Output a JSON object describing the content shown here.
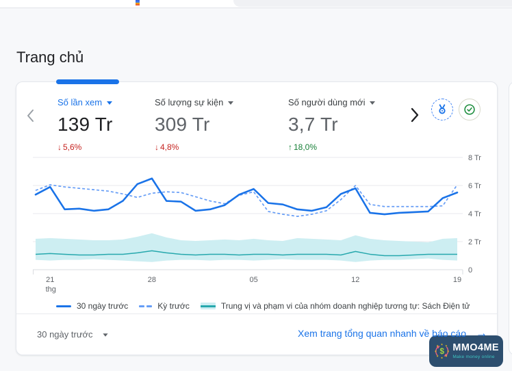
{
  "page": {
    "title": "Trang chủ"
  },
  "card": {
    "metrics": [
      {
        "label": "Số lần xem",
        "value": "139 Tr",
        "arrow": "↓",
        "delta": "5,6%",
        "direction": "down",
        "selected": true
      },
      {
        "label": "Số lượng sự kiện",
        "value": "309 Tr",
        "arrow": "↓",
        "delta": "4,8%",
        "direction": "down",
        "selected": false
      },
      {
        "label": "Số người dùng mới",
        "value": "3,7 Tr",
        "arrow": "↑",
        "delta": "18,0%",
        "direction": "up",
        "selected": false
      }
    ],
    "legend": [
      "30 ngày trước",
      "Kỳ trước",
      "Trung vị và phạm vi của nhóm doanh nghiệp tương tự: Sách Điện tử"
    ],
    "footer": {
      "range_label": "30 ngày trước",
      "link_label": "Xem trang tổng quan nhanh về báo cáo",
      "link_arrow": "→"
    }
  },
  "chart_data": {
    "type": "line",
    "unit": "Tr",
    "ylim": [
      0,
      8
    ],
    "grid": true,
    "legend_position": "bottom",
    "x_ticks": [
      {
        "i": 1,
        "label": "21",
        "sub": "thg"
      },
      {
        "i": 8,
        "label": "28"
      },
      {
        "i": 15,
        "label": "05"
      },
      {
        "i": 22,
        "label": "12"
      },
      {
        "i": 29,
        "label": "19"
      }
    ],
    "y_ticks": [
      {
        "v": 8,
        "label": "8 Tr"
      },
      {
        "v": 6,
        "label": "6 Tr"
      },
      {
        "v": 4,
        "label": "4 Tr"
      },
      {
        "v": 2,
        "label": "2 Tr"
      },
      {
        "v": 0,
        "label": "0"
      }
    ],
    "series": [
      {
        "name": "30 ngày trước",
        "style": "solid",
        "values": [
          5.35,
          5.9,
          4.3,
          4.35,
          4.2,
          4.3,
          4.9,
          6.1,
          6.5,
          4.9,
          4.85,
          4.2,
          4.3,
          4.6,
          5.35,
          5.75,
          4.75,
          4.65,
          4.3,
          4.2,
          4.45,
          5.4,
          5.8,
          4.05,
          3.95,
          4.05,
          4.1,
          4.15,
          5.1,
          5.5
        ]
      },
      {
        "name": "Kỳ trước",
        "style": "dashed",
        "values": [
          5.65,
          6.05,
          5.9,
          5.8,
          5.7,
          5.6,
          5.4,
          5.15,
          5.45,
          5.55,
          5.5,
          5.2,
          4.9,
          4.7,
          5.3,
          5.55,
          4.15,
          3.95,
          3.8,
          3.95,
          4.2,
          5.0,
          6.0,
          4.65,
          4.5,
          4.5,
          4.5,
          4.5,
          4.55,
          6.05
        ]
      },
      {
        "name": "Trung vị và phạm vi của nhóm doanh nghiệp tương tự: Sách Điện tử",
        "style": "band_with_median",
        "median": [
          1.1,
          1.15,
          1.1,
          1.05,
          1.05,
          1.1,
          1.1,
          1.2,
          1.35,
          1.2,
          1.1,
          1.05,
          1.1,
          1.1,
          1.05,
          1.1,
          1.1,
          1.05,
          1.1,
          1.1,
          1.1,
          1.05,
          1.3,
          1.1,
          1.0,
          1.0,
          1.05,
          1.1,
          1.1,
          1.1
        ],
        "low": [
          0.7,
          0.65,
          0.7,
          0.7,
          0.75,
          0.7,
          0.65,
          0.6,
          0.55,
          0.65,
          0.7,
          0.7,
          0.65,
          0.7,
          0.7,
          0.65,
          0.7,
          0.75,
          0.7,
          0.7,
          0.7,
          0.65,
          0.55,
          0.65,
          0.7,
          0.7,
          0.75,
          0.8,
          0.7,
          0.65
        ],
        "high": [
          2.2,
          2.25,
          2.2,
          2.15,
          2.1,
          2.1,
          2.15,
          2.35,
          2.6,
          2.3,
          2.1,
          2.05,
          2.1,
          2.15,
          2.1,
          2.2,
          2.1,
          2.05,
          2.25,
          2.2,
          2.15,
          2.1,
          2.45,
          2.2,
          2.1,
          2.05,
          2.0,
          1.95,
          2.2,
          2.25
        ]
      }
    ]
  },
  "watermark": {
    "title": "MMO4ME",
    "subtitle": "Make money online",
    "dollar": "$"
  },
  "colors": {
    "accent_blue": "#1a73e8",
    "dashed_blue": "#669df6",
    "teal": "#26a8ad",
    "band": "#cdeef2",
    "red": "#c5221f",
    "green": "#188038",
    "grid": "#e8eaed",
    "axis": "#dadce0",
    "text_gray": "#5f6368",
    "text_dark": "#202124",
    "badge_bg": "#2d4e6e",
    "badge_teal": "#3ec6c2",
    "badge_lime": "#a3cf3d",
    "badge_star": "#f5c518",
    "badge_arrow": "#e4627f"
  }
}
